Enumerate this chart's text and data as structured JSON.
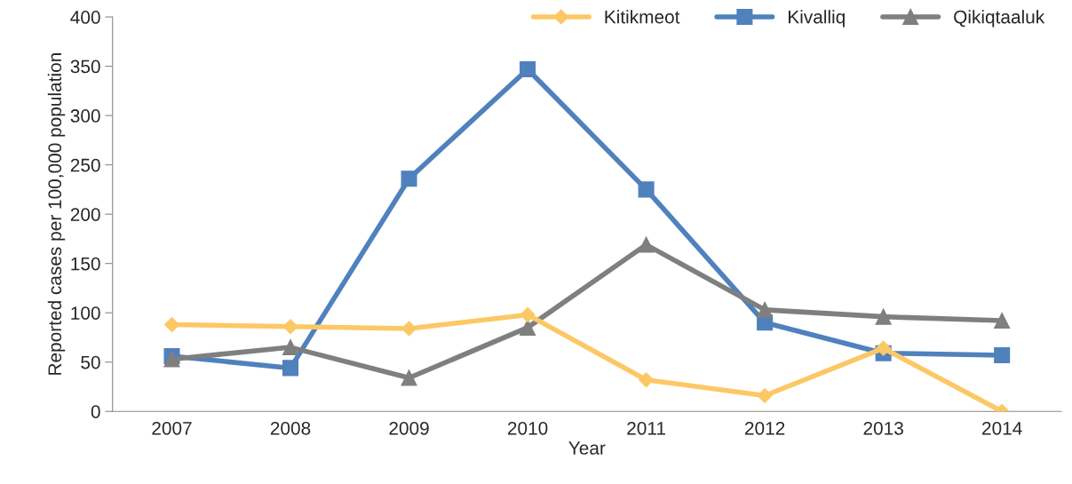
{
  "chart_data": {
    "type": "line",
    "xlabel": "Year",
    "ylabel": "Reported cases per 100,000 population",
    "categories": [
      "2007",
      "2008",
      "2009",
      "2010",
      "2011",
      "2012",
      "2013",
      "2014"
    ],
    "series": [
      {
        "name": "Kitikmeot",
        "color": "#fcc866",
        "marker": "diamond",
        "values": [
          88,
          86,
          84,
          98,
          32,
          16,
          64,
          0
        ]
      },
      {
        "name": "Kivalliq",
        "color": "#4f81bd",
        "marker": "square",
        "values": [
          56,
          44,
          236,
          347,
          225,
          90,
          59,
          57
        ]
      },
      {
        "name": "Qikiqtaaluk",
        "color": "#7f7f7f",
        "marker": "triangle",
        "values": [
          53,
          65,
          34,
          85,
          169,
          103,
          96,
          92
        ]
      }
    ],
    "ylim": [
      0,
      400
    ],
    "yticks": [
      0,
      50,
      100,
      150,
      200,
      250,
      300,
      350,
      400
    ],
    "grid": false,
    "legend": "top right",
    "line_style": "solid"
  }
}
